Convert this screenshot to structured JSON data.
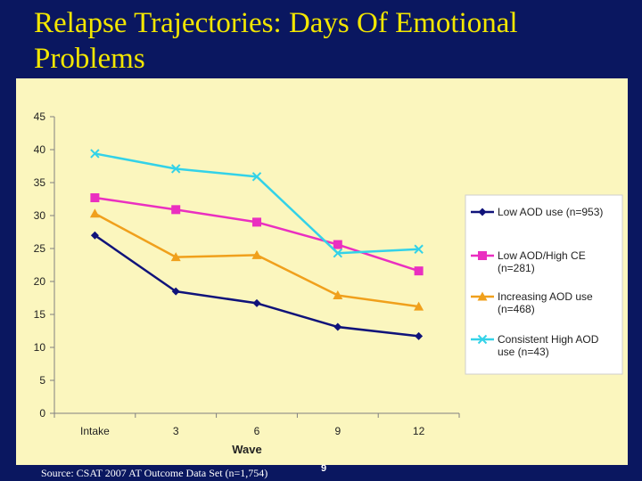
{
  "slide": {
    "title": "Relapse Trajectories: Days Of Emotional Problems",
    "source": "Source: CSAT 2007 AT Outcome Data Set (n=1,754)",
    "page_number": "9"
  },
  "colors": {
    "background": "#0a1760",
    "title": "#f2e600",
    "plot_background": "#fbf6be"
  },
  "chart_data": {
    "type": "line",
    "title": "",
    "xlabel": "Wave",
    "ylabel": "",
    "categories": [
      "Intake",
      "3",
      "6",
      "9",
      "12"
    ],
    "ylim": [
      0,
      45
    ],
    "yticks": [
      0,
      5,
      10,
      15,
      20,
      25,
      30,
      35,
      40,
      45
    ],
    "grid": false,
    "legend_position": "right",
    "series": [
      {
        "name": "Low AOD use (n=953)",
        "legend_lines": [
          "Low AOD use (n=953)"
        ],
        "color": "#10137a",
        "marker": "diamond",
        "values": [
          27.0,
          18.5,
          16.7,
          13.1,
          11.7
        ]
      },
      {
        "name": "Low AOD/High CE (n=281)",
        "legend_lines": [
          "Low AOD/High CE",
          "(n=281)"
        ],
        "color": "#ea2fc0",
        "marker": "square",
        "values": [
          32.7,
          30.9,
          29.0,
          25.6,
          21.6
        ]
      },
      {
        "name": "Increasing AOD use (n=468)",
        "legend_lines": [
          "Increasing AOD use",
          "(n=468)"
        ],
        "color": "#f0a01c",
        "marker": "triangle",
        "values": [
          30.3,
          23.7,
          24.0,
          17.9,
          16.2
        ]
      },
      {
        "name": "Consistent High AOD use (n=43)",
        "legend_lines": [
          "Consistent High AOD",
          "use (n=43)"
        ],
        "color": "#33d2e8",
        "marker": "x",
        "values": [
          39.4,
          37.1,
          35.9,
          24.3,
          24.9
        ]
      }
    ]
  }
}
